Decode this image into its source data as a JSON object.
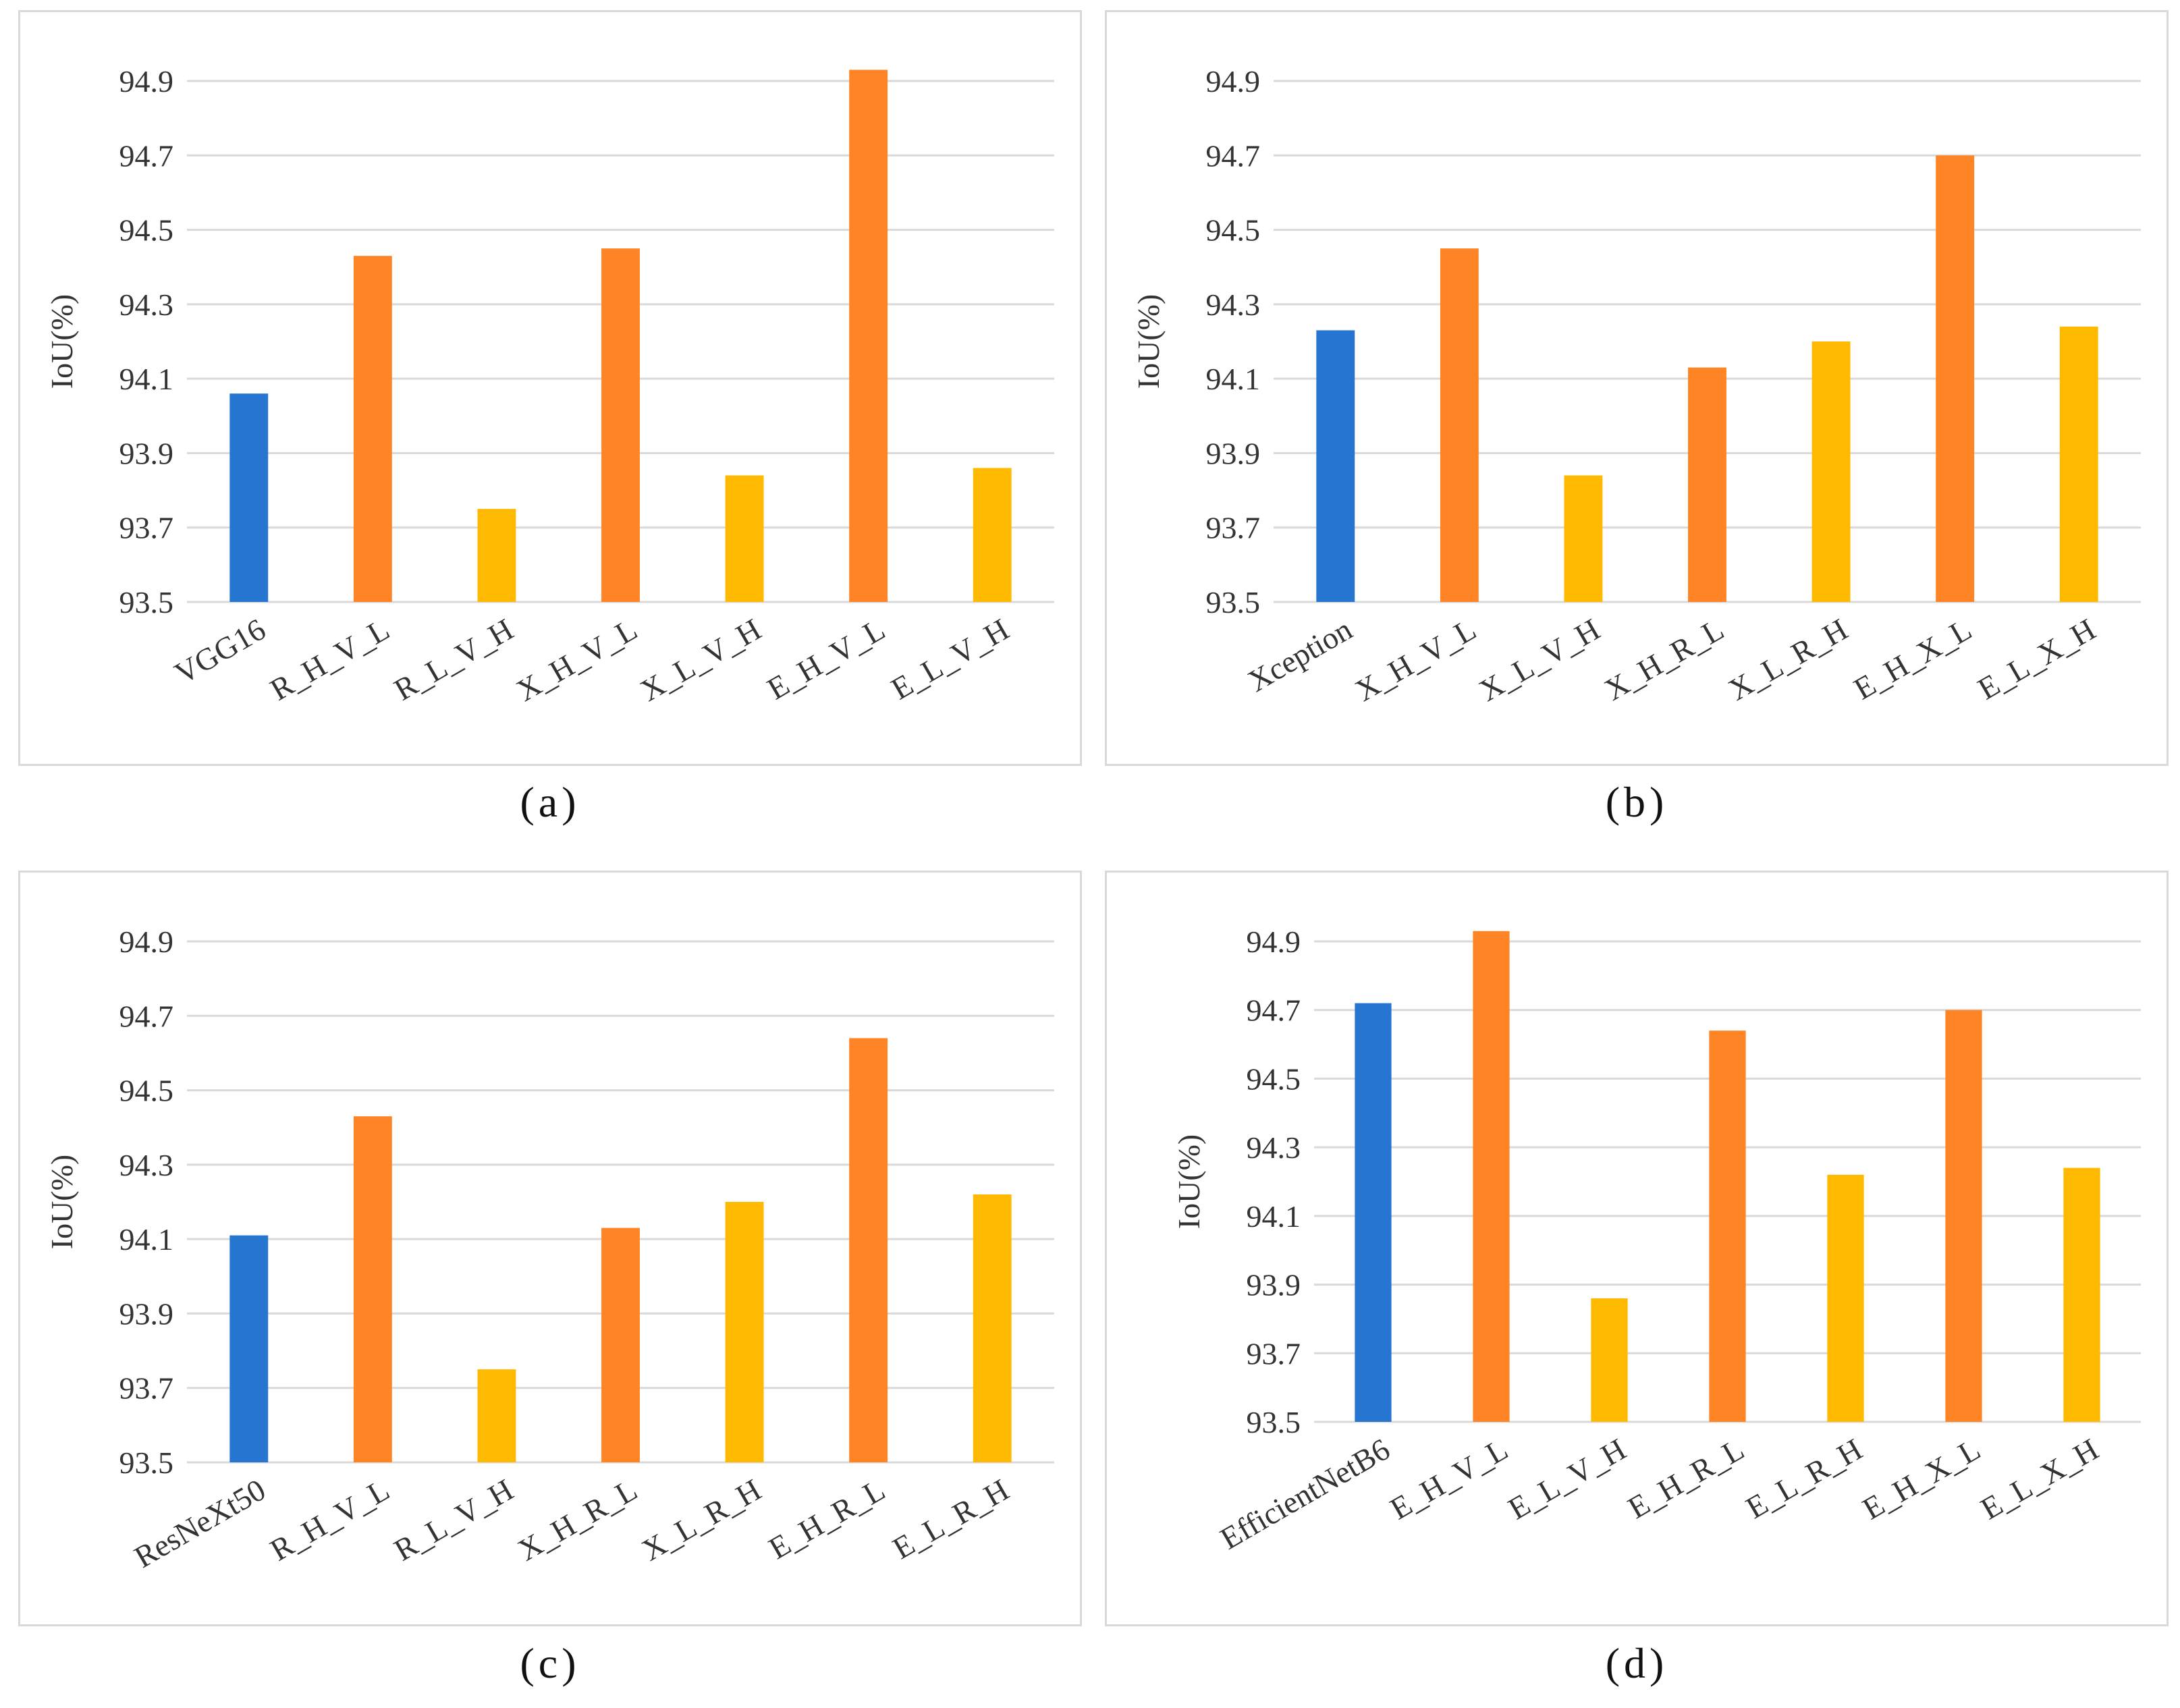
{
  "colors": {
    "baseline": "#2675D1",
    "high": "#FF8426",
    "low": "#FFB900",
    "grid": "#d9d9d9",
    "text": "#333333"
  },
  "chart_data": [
    {
      "type": "bar",
      "panel": "(a)",
      "ylabel": "IoU(%)",
      "ylim": [
        93.5,
        94.9
      ],
      "yticks": [
        "93.5",
        "93.7",
        "93.9",
        "94.1",
        "94.3",
        "94.5",
        "94.7",
        "94.9"
      ],
      "categories": [
        "VGG16",
        "R_H_V_L",
        "R_L_V_H",
        "X_H_V_L",
        "X_L_V_H",
        "E_H_V_L",
        "E_L_V_H"
      ],
      "values": [
        94.06,
        94.43,
        93.75,
        94.45,
        93.84,
        94.93,
        93.86
      ],
      "bar_colors": [
        "baseline",
        "high",
        "low",
        "high",
        "low",
        "high",
        "low"
      ]
    },
    {
      "type": "bar",
      "panel": "(b)",
      "ylabel": "IoU(%)",
      "ylim": [
        93.5,
        94.9
      ],
      "yticks": [
        "93.5",
        "93.7",
        "93.9",
        "94.1",
        "94.3",
        "94.5",
        "94.7",
        "94.9"
      ],
      "categories": [
        "Xception",
        "X_H_V_L",
        "X_L_V_H",
        "X_H_R_L",
        "X_L_R_H",
        "E_H_X_L",
        "E_L_X_H"
      ],
      "values": [
        94.23,
        94.45,
        93.84,
        94.13,
        94.2,
        94.7,
        94.24
      ],
      "bar_colors": [
        "baseline",
        "high",
        "low",
        "high",
        "low",
        "high",
        "low"
      ]
    },
    {
      "type": "bar",
      "panel": "(c)",
      "ylabel": "IoU(%)",
      "ylim": [
        93.5,
        94.9
      ],
      "yticks": [
        "93.5",
        "93.7",
        "93.9",
        "94.1",
        "94.3",
        "94.5",
        "94.7",
        "94.9"
      ],
      "categories": [
        "ResNeXt50",
        "R_H_V_L",
        "R_L_V_H",
        "X_H_R_L",
        "X_L_R_H",
        "E_H_R_L",
        "E_L_R_H"
      ],
      "values": [
        94.11,
        94.43,
        93.75,
        94.13,
        94.2,
        94.64,
        94.22
      ],
      "bar_colors": [
        "baseline",
        "high",
        "low",
        "high",
        "low",
        "high",
        "low"
      ]
    },
    {
      "type": "bar",
      "panel": "(d)",
      "ylabel": "IoU(%)",
      "ylim": [
        93.5,
        94.9
      ],
      "yticks": [
        "93.5",
        "93.7",
        "93.9",
        "94.1",
        "94.3",
        "94.5",
        "94.7",
        "94.9"
      ],
      "categories": [
        "EfficientNetB6",
        "E_H_V_L",
        "E_L_V_H",
        "E_H_R_L",
        "E_L_R_H",
        "E_H_X_L",
        "E_L_X_H"
      ],
      "values": [
        94.72,
        94.93,
        93.86,
        94.64,
        94.22,
        94.7,
        94.24
      ],
      "bar_colors": [
        "baseline",
        "high",
        "low",
        "high",
        "low",
        "high",
        "low"
      ]
    }
  ]
}
